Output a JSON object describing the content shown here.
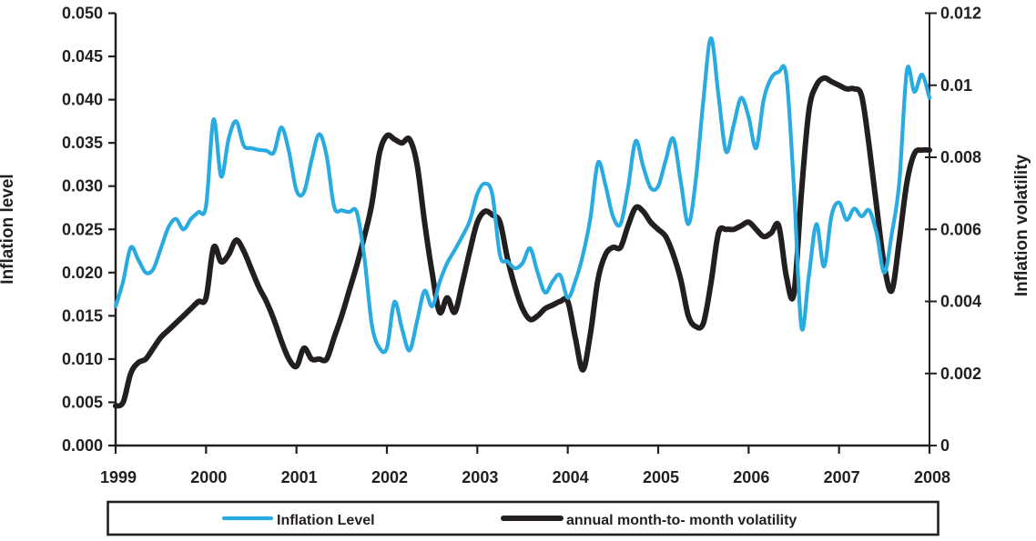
{
  "chart_data": {
    "type": "line",
    "title": "",
    "x_axis": {
      "tick_years": [
        "1999",
        "2000",
        "2001",
        "2002",
        "2003",
        "2004",
        "2005",
        "2006",
        "2007",
        "2008"
      ],
      "start_year": 1999,
      "months_per_point": 1,
      "grid": false
    },
    "left_axis": {
      "title": "Inflation level",
      "min": 0,
      "max": 0.05,
      "tick_step": 0.005,
      "tick_labels": [
        "0.000",
        "0.005",
        "0.010",
        "0.015",
        "0.020",
        "0.025",
        "0.030",
        "0.035",
        "0.040",
        "0.045",
        "0.050"
      ]
    },
    "right_axis": {
      "title": "Inflation volatility",
      "min": 0,
      "max": 0.012,
      "tick_step": 0.002,
      "tick_labels": [
        "0",
        "0.002",
        "0.004",
        "0.006",
        "0.008",
        "0.01",
        "0.012"
      ]
    },
    "legend": {
      "position": "bottom",
      "border": true
    },
    "colors": {
      "axis": "#231f20",
      "background": "#ffffff"
    },
    "series": [
      {
        "name": "Inflation Level",
        "axis": "left",
        "color": "#29abe2",
        "stroke_width": 4.2,
        "monthly_values": [
          0.0161,
          0.019,
          0.0229,
          0.0215,
          0.02,
          0.0204,
          0.0228,
          0.0252,
          0.0262,
          0.025,
          0.0262,
          0.027,
          0.0277,
          0.0377,
          0.0311,
          0.0355,
          0.0375,
          0.0347,
          0.0344,
          0.0342,
          0.0341,
          0.0339,
          0.0368,
          0.034,
          0.0295,
          0.0293,
          0.033,
          0.036,
          0.0335,
          0.0276,
          0.0272,
          0.027,
          0.027,
          0.0218,
          0.014,
          0.0113,
          0.0113,
          0.0166,
          0.0135,
          0.011,
          0.0144,
          0.0179,
          0.0161,
          0.0189,
          0.0211,
          0.0226,
          0.0242,
          0.026,
          0.0291,
          0.0303,
          0.029,
          0.022,
          0.0213,
          0.0205,
          0.0211,
          0.0228,
          0.02,
          0.0177,
          0.019,
          0.0197,
          0.0171,
          0.019,
          0.022,
          0.0263,
          0.0327,
          0.0301,
          0.0265,
          0.0256,
          0.0298,
          0.0352,
          0.0323,
          0.0298,
          0.03,
          0.033,
          0.0355,
          0.0305,
          0.0256,
          0.0308,
          0.04,
          0.0471,
          0.0405,
          0.034,
          0.037,
          0.0402,
          0.038,
          0.0344,
          0.04,
          0.0425,
          0.0432,
          0.0428,
          0.03,
          0.0137,
          0.0197,
          0.0256,
          0.0207,
          0.0266,
          0.0281,
          0.0261,
          0.0274,
          0.0265,
          0.0272,
          0.0245,
          0.02,
          0.0245,
          0.0305,
          0.0434,
          0.0409,
          0.0429,
          0.0402
        ]
      },
      {
        "name": "annual month-to- month volatility",
        "axis": "right",
        "color": "#231f20",
        "stroke_width": 6,
        "monthly_values": [
          0.0011,
          0.0012,
          0.002,
          0.0023,
          0.0024,
          0.0027,
          0.003,
          0.0032,
          0.0034,
          0.0036,
          0.0038,
          0.004,
          0.0041,
          0.0055,
          0.0051,
          0.0053,
          0.0057,
          0.0054,
          0.0049,
          0.0044,
          0.004,
          0.0035,
          0.0029,
          0.0024,
          0.0022,
          0.0027,
          0.0024,
          0.0024,
          0.0024,
          0.003,
          0.0036,
          0.0043,
          0.005,
          0.0058,
          0.0067,
          0.0081,
          0.0086,
          0.0085,
          0.0084,
          0.0085,
          0.0078,
          0.0062,
          0.0048,
          0.0037,
          0.0041,
          0.0037,
          0.0045,
          0.0054,
          0.0062,
          0.0065,
          0.0064,
          0.0062,
          0.0052,
          0.0044,
          0.0038,
          0.0035,
          0.0036,
          0.0038,
          0.0039,
          0.004,
          0.004,
          0.003,
          0.0021,
          0.0031,
          0.0046,
          0.0053,
          0.0055,
          0.0055,
          0.0061,
          0.0066,
          0.0065,
          0.0062,
          0.006,
          0.0058,
          0.0053,
          0.0046,
          0.0036,
          0.0033,
          0.0034,
          0.0045,
          0.0059,
          0.006,
          0.006,
          0.0061,
          0.0062,
          0.006,
          0.0058,
          0.0059,
          0.0061,
          0.0047,
          0.0042,
          0.007,
          0.0093,
          0.01,
          0.0102,
          0.0101,
          0.01,
          0.0099,
          0.0099,
          0.0097,
          0.0083,
          0.0066,
          0.005,
          0.0043,
          0.0057,
          0.0073,
          0.0081,
          0.0082,
          0.0082
        ]
      }
    ]
  }
}
